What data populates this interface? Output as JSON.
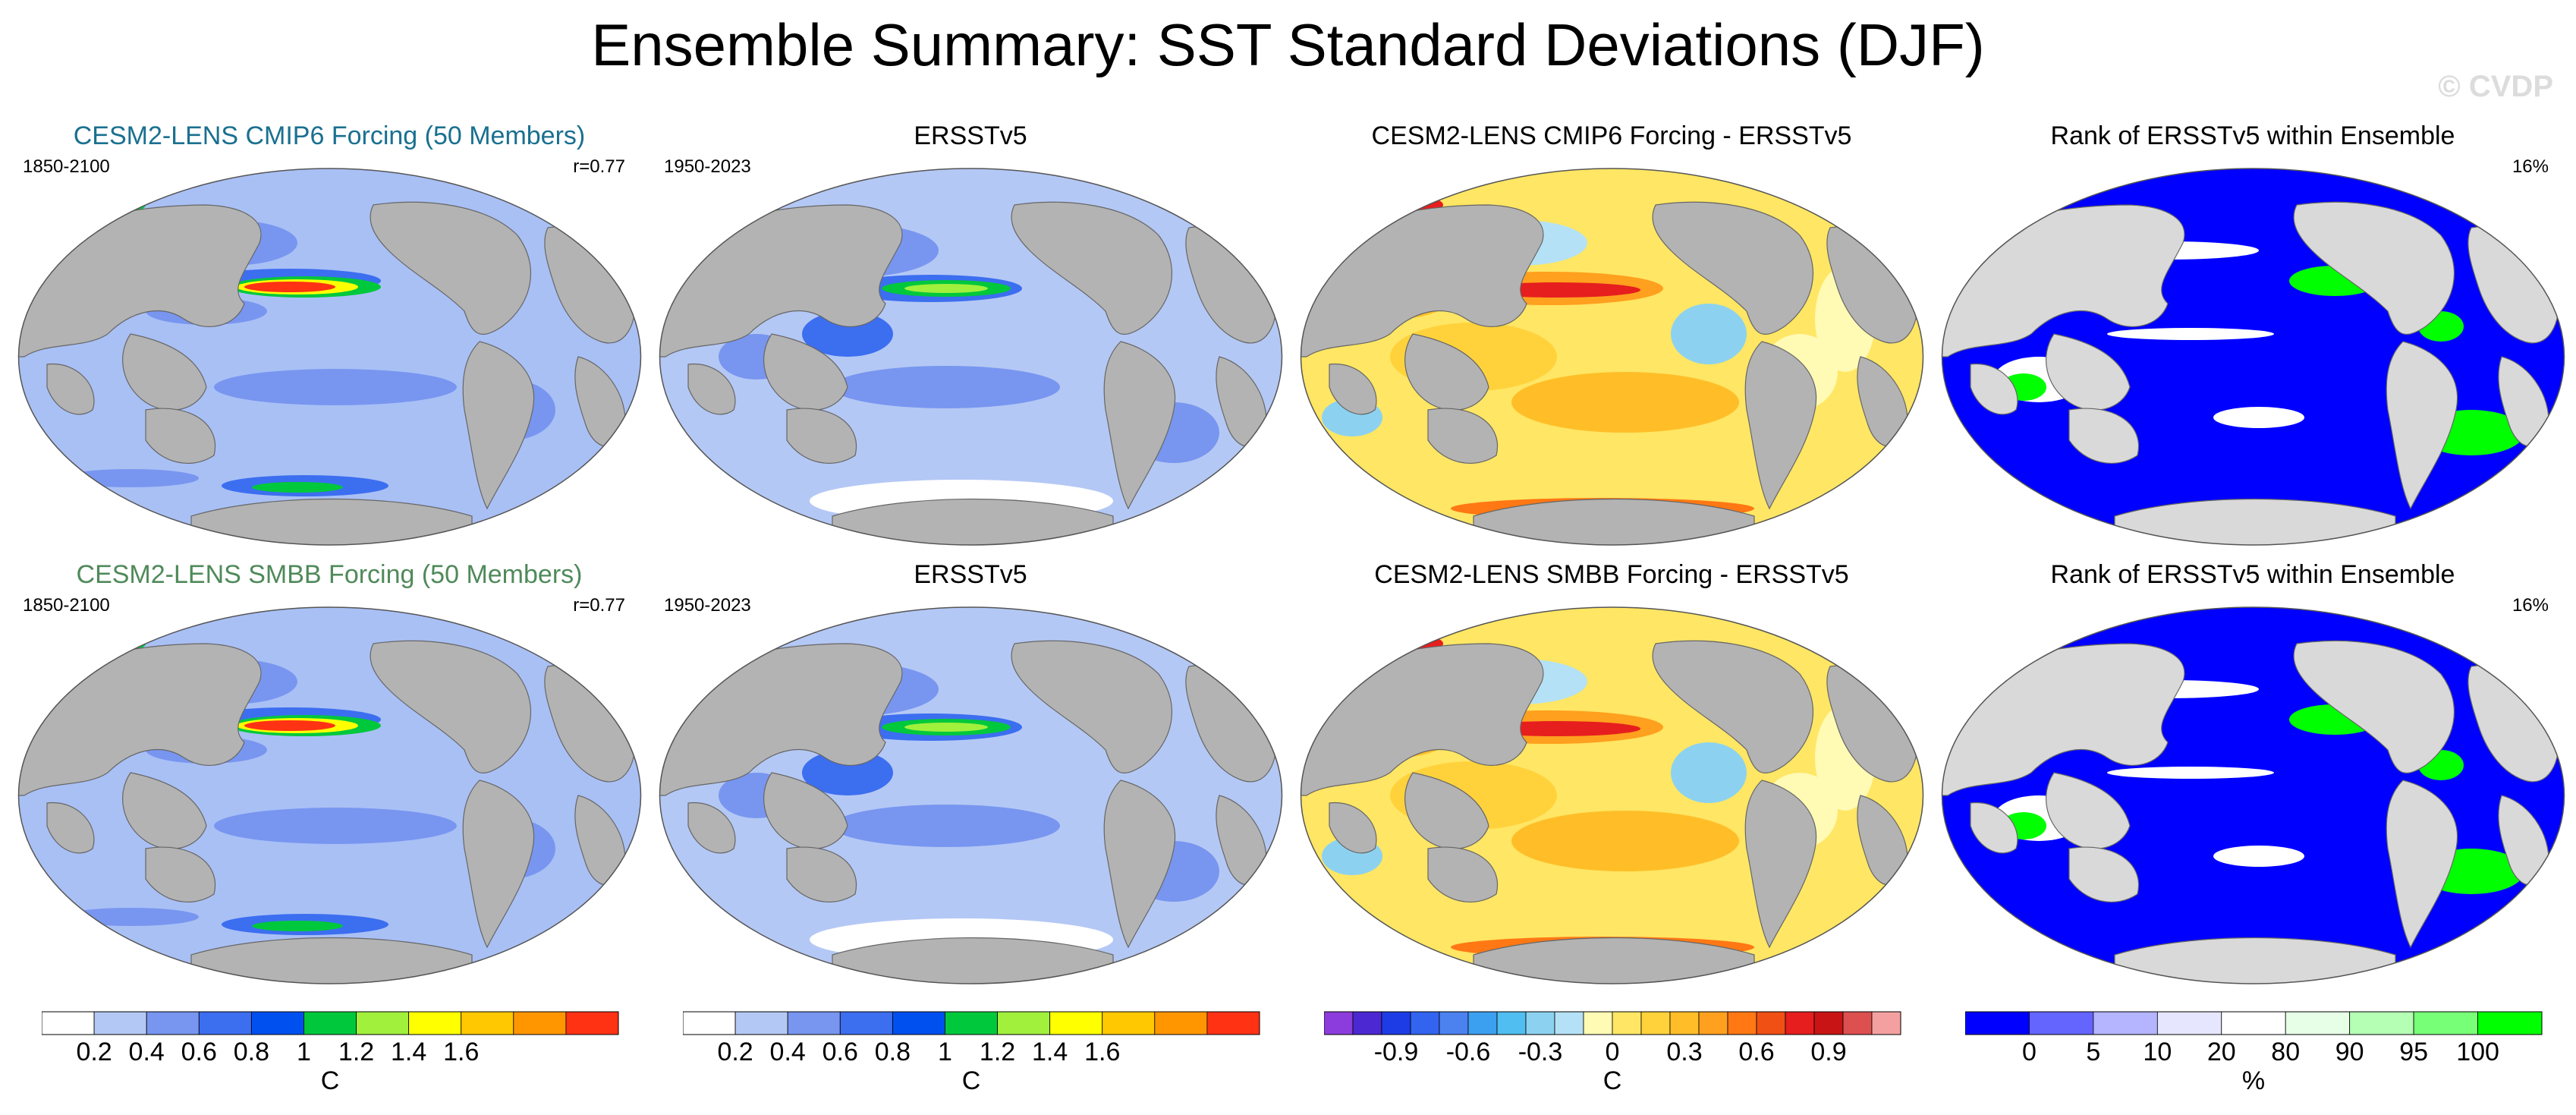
{
  "title": "Ensemble Summary: SST Standard Deviations (DJF)",
  "watermark": "© CVDP",
  "rows": [
    {
      "panels": [
        {
          "title": "CESM2-LENS CMIP6 Forcing (50 Members)",
          "title_color": "#1a7090",
          "left": "1850-2100",
          "right": "r=0.77",
          "kind": "sd-model"
        },
        {
          "title": "ERSSTv5",
          "title_color": "#000000",
          "left": "1950-2023",
          "right": "",
          "kind": "sd-obs"
        },
        {
          "title": "CESM2-LENS CMIP6 Forcing - ERSSTv5",
          "title_color": "#000000",
          "left": "",
          "right": "",
          "kind": "diff"
        },
        {
          "title": "Rank of ERSSTv5 within Ensemble",
          "title_color": "#000000",
          "left": "",
          "right": "16%",
          "kind": "rank"
        }
      ]
    },
    {
      "panels": [
        {
          "title": "CESM2-LENS SMBB Forcing (50 Members)",
          "title_color": "#4f8a5a",
          "left": "1850-2100",
          "right": "r=0.77",
          "kind": "sd-model"
        },
        {
          "title": "ERSSTv5",
          "title_color": "#000000",
          "left": "1950-2023",
          "right": "",
          "kind": "sd-obs"
        },
        {
          "title": "CESM2-LENS SMBB Forcing - ERSSTv5",
          "title_color": "#000000",
          "left": "",
          "right": "",
          "kind": "diff"
        },
        {
          "title": "Rank of ERSSTv5 within Ensemble",
          "title_color": "#000000",
          "left": "",
          "right": "16%",
          "kind": "rank"
        }
      ]
    }
  ],
  "colorbars": [
    {
      "unit": "C",
      "colors": [
        "#ffffff",
        "#b4c8f5",
        "#7896f0",
        "#3c6ef0",
        "#0050f0",
        "#00c83c",
        "#a0f03c",
        "#ffff00",
        "#ffc800",
        "#ff9600",
        "#ff3214"
      ],
      "labels": [
        "0.2",
        "0.4",
        "0.6",
        "0.8",
        "1",
        "1.2",
        "1.4",
        "1.6"
      ]
    },
    {
      "unit": "C",
      "colors": [
        "#ffffff",
        "#b4c8f5",
        "#7896f0",
        "#3c6ef0",
        "#0050f0",
        "#00c83c",
        "#a0f03c",
        "#ffff00",
        "#ffc800",
        "#ff9600",
        "#ff3214"
      ],
      "labels": [
        "0.2",
        "0.4",
        "0.6",
        "0.8",
        "1",
        "1.2",
        "1.4",
        "1.6"
      ]
    },
    {
      "unit": "C",
      "colors": [
        "#8c3cdc",
        "#4b28d2",
        "#1e3ce6",
        "#3264f0",
        "#4b82f0",
        "#3ca0f0",
        "#50bef0",
        "#8cd2f0",
        "#b4e1f5",
        "#fffab4",
        "#ffe664",
        "#ffd23c",
        "#ffbe28",
        "#ffa01e",
        "#ff7814",
        "#f05014",
        "#e61e1e",
        "#c81414",
        "#dc5050",
        "#f5a0a0"
      ],
      "labels": [
        "-0.9",
        "-0.6",
        "-0.3",
        "0",
        "0.3",
        "0.6",
        "0.9"
      ]
    },
    {
      "unit": "%",
      "colors": [
        "#0000ff",
        "#6464ff",
        "#b4b4ff",
        "#e6e6ff",
        "#ffffff",
        "#e6ffe6",
        "#b4ffb4",
        "#78ff78",
        "#00ff00"
      ],
      "labels": [
        "0",
        "5",
        "10",
        "20",
        "80",
        "90",
        "95",
        "100"
      ]
    }
  ],
  "chart_data": [
    {
      "type": "heatmap",
      "title": "CESM2-LENS CMIP6 Forcing (50 Members)",
      "subtitle_left": "1850-2100",
      "subtitle_right": "r=0.77",
      "unit": "C",
      "levels": [
        0.2,
        0.4,
        0.6,
        0.8,
        1,
        1.2,
        1.4,
        1.6
      ]
    },
    {
      "type": "heatmap",
      "title": "ERSSTv5",
      "subtitle_left": "1950-2023",
      "unit": "C",
      "levels": [
        0.2,
        0.4,
        0.6,
        0.8,
        1,
        1.2,
        1.4,
        1.6
      ]
    },
    {
      "type": "heatmap",
      "title": "CESM2-LENS CMIP6 Forcing - ERSSTv5",
      "unit": "C",
      "levels": [
        -0.9,
        -0.6,
        -0.3,
        0,
        0.3,
        0.6,
        0.9
      ]
    },
    {
      "type": "heatmap",
      "title": "Rank of ERSSTv5 within Ensemble",
      "subtitle_right": "16%",
      "unit": "%",
      "levels": [
        0,
        5,
        10,
        20,
        80,
        90,
        95,
        100
      ]
    },
    {
      "type": "heatmap",
      "title": "CESM2-LENS SMBB Forcing (50 Members)",
      "subtitle_left": "1850-2100",
      "subtitle_right": "r=0.77",
      "unit": "C",
      "levels": [
        0.2,
        0.4,
        0.6,
        0.8,
        1,
        1.2,
        1.4,
        1.6
      ]
    },
    {
      "type": "heatmap",
      "title": "ERSSTv5",
      "subtitle_left": "1950-2023",
      "unit": "C",
      "levels": [
        0.2,
        0.4,
        0.6,
        0.8,
        1,
        1.2,
        1.4,
        1.6
      ]
    },
    {
      "type": "heatmap",
      "title": "CESM2-LENS SMBB Forcing - ERSSTv5",
      "unit": "C",
      "levels": [
        -0.9,
        -0.6,
        -0.3,
        0,
        0.3,
        0.6,
        0.9
      ]
    },
    {
      "type": "heatmap",
      "title": "Rank of ERSSTv5 within Ensemble",
      "subtitle_right": "16%",
      "unit": "%",
      "levels": [
        0,
        5,
        10,
        20,
        80,
        90,
        95,
        100
      ]
    }
  ]
}
